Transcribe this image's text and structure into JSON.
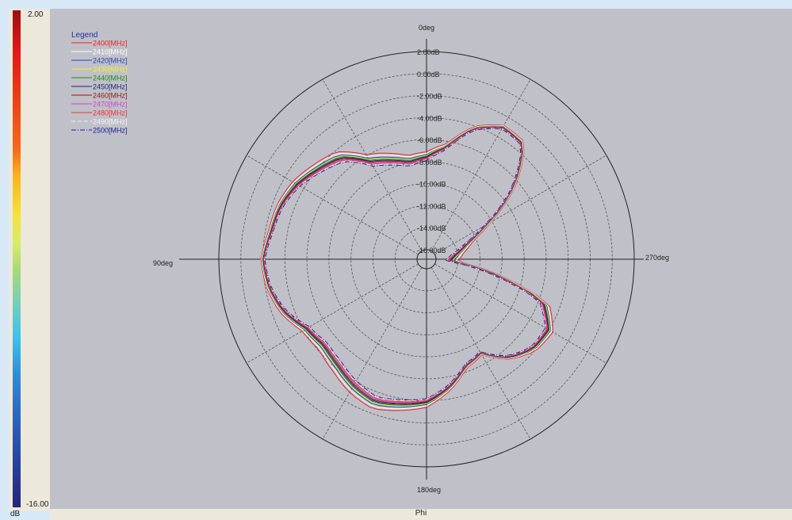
{
  "colorbar": {
    "max_label": "2.00",
    "min_label": "-16.00",
    "unit_label": "dB"
  },
  "plot": {
    "xlabel": "Phi"
  },
  "legend": {
    "title": "Legend"
  },
  "chart_data": {
    "type": "polar-line",
    "title": "",
    "xlabel": "Phi",
    "angle_labels": [
      "0deg",
      "90deg",
      "180deg",
      "270deg"
    ],
    "radial_tick_labels": [
      "2.00dB",
      "0.00dB",
      "-2.00dB",
      "-4.00dB",
      "-6.00dB",
      "-8.00dB",
      "-10.00dB",
      "-12.00dB",
      "-14.00dB",
      "-16.00dB"
    ],
    "r_range": [
      -16,
      2
    ],
    "r_unit": "dB",
    "angular_grid_step_deg": 30,
    "grid": true,
    "legend_position": "top-left",
    "base_pattern": {
      "angle_deg": [
        0,
        10,
        20,
        30,
        40,
        50,
        60,
        70,
        80,
        90,
        100,
        110,
        120,
        130,
        140,
        150,
        160,
        170,
        180,
        190,
        200,
        210,
        220,
        230,
        240,
        250,
        255,
        260,
        265,
        270,
        280,
        290,
        295,
        300,
        310,
        320,
        330,
        340,
        350
      ],
      "gain_db": [
        -7.5,
        -7.8,
        -7.2,
        -6.5,
        -4.7,
        -4.0,
        -3.2,
        -2.7,
        -2.5,
        -2.0,
        -2.3,
        -3.0,
        -4.2,
        -4.6,
        -4.2,
        -3.5,
        -3.0,
        -3.4,
        -3.8,
        -5.0,
        -6.5,
        -7.0,
        -5.2,
        -4.2,
        -4.0,
        -5.5,
        -9.0,
        -12.0,
        -14.5,
        -14.5,
        -14.0,
        -13.0,
        -12.0,
        -10.5,
        -6.5,
        -3.2,
        -3.0,
        -4.2,
        -6.5
      ]
    },
    "series": [
      {
        "name": "2400[MHz]",
        "color": "#ee2222",
        "dash": "solid",
        "offset_db": 0.6
      },
      {
        "name": "2410[MHz]",
        "color": "#ffffff",
        "dash": "solid",
        "offset_db": 0.4
      },
      {
        "name": "2420[MHz]",
        "color": "#2244bb",
        "dash": "solid",
        "offset_db": 0.2
      },
      {
        "name": "2430[MHz]",
        "color": "#f0f030",
        "dash": "solid",
        "offset_db": 0.1
      },
      {
        "name": "2440[MHz]",
        "color": "#1a8a1a",
        "dash": "solid",
        "offset_db": 0.0
      },
      {
        "name": "2450[MHz]",
        "color": "#22227a",
        "dash": "solid",
        "offset_db": -0.1
      },
      {
        "name": "2460[MHz]",
        "color": "#8a1818",
        "dash": "solid",
        "offset_db": -0.2
      },
      {
        "name": "2470[MHz]",
        "color": "#cc44cc",
        "dash": "solid",
        "offset_db": -0.3
      },
      {
        "name": "2480[MHz]",
        "color": "#ee3333",
        "dash": "solid",
        "offset_db": -0.4
      },
      {
        "name": "2490[MHz]",
        "color": "#f4f4f4",
        "dash": "dash",
        "offset_db": -0.5
      },
      {
        "name": "2500[MHz]",
        "color": "#1a1aa0",
        "dash": "dashdot",
        "offset_db": -0.6
      }
    ]
  }
}
